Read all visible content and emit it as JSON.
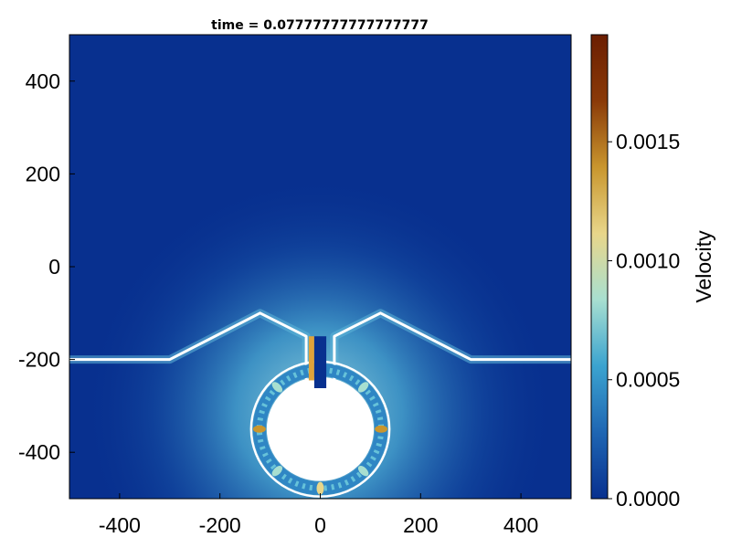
{
  "chart_data": {
    "type": "heatmap",
    "title": "time = 0.07777777777777777",
    "xlim": [
      -500,
      500
    ],
    "ylim": [
      -500,
      500
    ],
    "x_ticks": [
      {
        "value": -400,
        "label": "-400"
      },
      {
        "value": -200,
        "label": "-200"
      },
      {
        "value": 0,
        "label": "0"
      },
      {
        "value": 200,
        "label": "200"
      },
      {
        "value": 400,
        "label": "400"
      }
    ],
    "y_ticks": [
      {
        "value": 400,
        "label": "400"
      },
      {
        "value": 200,
        "label": "200"
      },
      {
        "value": 0,
        "label": "0"
      },
      {
        "value": -200,
        "label": "-200"
      },
      {
        "value": -400,
        "label": "-400"
      }
    ],
    "grid": false,
    "colorbar": {
      "label": "Velocity",
      "range": [
        0.0,
        0.00195
      ],
      "ticks": [
        {
          "value": 0.0,
          "label": "0.0000"
        },
        {
          "value": 0.0005,
          "label": "0.0005"
        },
        {
          "value": 0.001,
          "label": "0.0010"
        },
        {
          "value": 0.0015,
          "label": "0.0015"
        }
      ],
      "colormap": [
        "#08308f",
        "#1f66b3",
        "#3ba3cf",
        "#a8dfd0",
        "#e8d68a",
        "#c9962e",
        "#8a3a08",
        "#6b1e02"
      ]
    },
    "background_value": 0.0,
    "boundary": {
      "baseline_y": -200,
      "left_wall": [
        [
          -500,
          -200
        ],
        [
          -300,
          -200
        ],
        [
          -120,
          -100
        ],
        [
          -28,
          -150
        ],
        [
          -28,
          -245
        ]
      ],
      "right_wall": [
        [
          500,
          -200
        ],
        [
          300,
          -200
        ],
        [
          120,
          -100
        ],
        [
          28,
          -150
        ],
        [
          28,
          -245
        ]
      ],
      "opening_half_width": 12,
      "chamber_center": [
        0,
        -350
      ],
      "chamber_radius": [
        105,
        110
      ],
      "wall_color": "#ffffff"
    }
  }
}
